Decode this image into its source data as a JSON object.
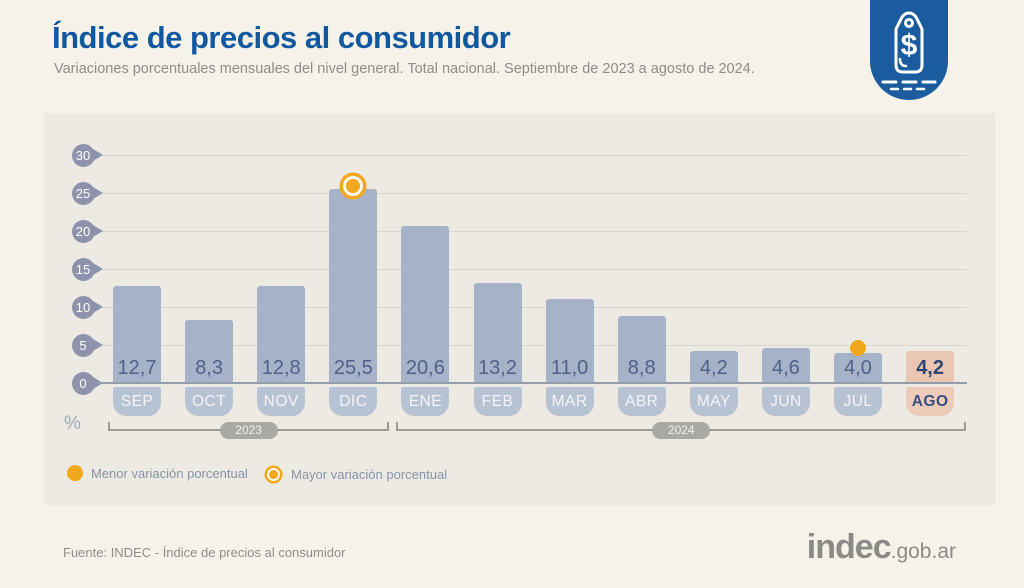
{
  "header": {
    "title": "Índice de precios al consumidor",
    "subtitle": "Variaciones porcentuales mensuales del nivel general. Total nacional. Septiembre de 2023 a agosto de 2024."
  },
  "colors": {
    "page_bg": "#f5f2ea",
    "panel_bg": "#edeae3",
    "title_blue": "#12589f",
    "badge_blue": "#1b5c9e",
    "gray_text": "#8f8d88",
    "bar": "#a6b2c7",
    "bar_hl": "#e9c7b3",
    "pill": "#b7c2d3",
    "pill_hl": "#ecccb9",
    "value_text": "#50608a",
    "value_text_hl": "#2d4573",
    "tick_badge": "#8e92ab",
    "grid": "#d8d5ce",
    "zero": "#959daa",
    "yellow": "#f2a81d",
    "year_line": "#9b9a95",
    "year_pill": "#a9a8a3",
    "legend_text": "#8793a8",
    "logo_gray": "#8b8a85"
  },
  "chart_data": {
    "type": "bar",
    "title": "Índice de precios al consumidor",
    "subtitle": "Variaciones porcentuales mensuales del nivel general. Total nacional. Septiembre de 2023 a agosto de 2024.",
    "ylabel": "%",
    "ylim": [
      0,
      30
    ],
    "yticks": [
      0,
      5,
      10,
      15,
      20,
      25,
      30
    ],
    "grid": true,
    "categories": [
      "SEP",
      "OCT",
      "NOV",
      "DIC",
      "ENE",
      "FEB",
      "MAR",
      "ABR",
      "MAY",
      "JUN",
      "JUL",
      "AGO"
    ],
    "values": [
      12.7,
      8.3,
      12.8,
      25.5,
      20.6,
      13.2,
      11.0,
      8.8,
      4.2,
      4.6,
      4.0,
      4.2
    ],
    "value_labels": [
      "12,7",
      "8,3",
      "12,8",
      "25,5",
      "20,6",
      "13,2",
      "11,0",
      "8,8",
      "4,2",
      "4,6",
      "4,0",
      "4,2"
    ],
    "highlight_index": 11,
    "min_marker_index": 10,
    "max_marker_index": 3,
    "year_groups": [
      {
        "label": "2023",
        "start": 0,
        "end": 3
      },
      {
        "label": "2024",
        "start": 4,
        "end": 11
      }
    ]
  },
  "legend": [
    {
      "label": "Menor variación porcentual",
      "marker": "solid-dot"
    },
    {
      "label": "Mayor variación porcentual",
      "marker": "ringed-dot"
    }
  ],
  "footer": {
    "source": "Fuente: INDEC - Índice de precios al consumidor",
    "logo_main": "indec",
    "logo_suffix": ".gob.ar"
  }
}
